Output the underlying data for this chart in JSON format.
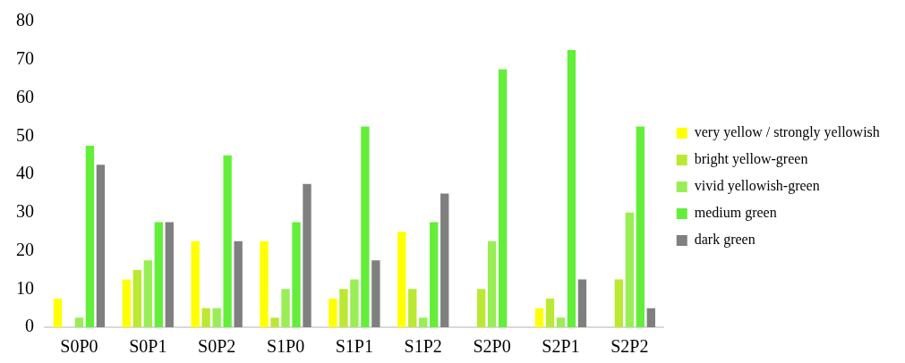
{
  "chart_data": {
    "type": "bar",
    "categories": [
      "S0P0",
      "S0P1",
      "S0P2",
      "S1P0",
      "S1P1",
      "S1P2",
      "S2P0",
      "S2P1",
      "S2P2"
    ],
    "series": [
      {
        "name": "very yellow / strongly yellowish",
        "color": "#ffff00",
        "values": [
          7.5,
          12.5,
          22.5,
          22.5,
          7.5,
          25,
          0,
          5,
          0
        ]
      },
      {
        "name": "bright yellow-green",
        "color": "#bbe833",
        "values": [
          0,
          15,
          5,
          2.5,
          10,
          10,
          10,
          7.5,
          12.5
        ]
      },
      {
        "name": "vivid yellowish-green",
        "color": "#99ee55",
        "values": [
          2.5,
          17.5,
          5,
          10,
          12.5,
          2.5,
          22.5,
          2.5,
          30
        ]
      },
      {
        "name": "medium green",
        "color": "#63ee3a",
        "values": [
          47.5,
          27.5,
          45,
          27.5,
          52.5,
          27.5,
          67.5,
          72.5,
          52.5
        ]
      },
      {
        "name": "dark green",
        "color": "#7f7f7f",
        "values": [
          42.5,
          27.5,
          22.5,
          37.5,
          17.5,
          35,
          0,
          12.5,
          5
        ]
      }
    ],
    "ylim": [
      0,
      80
    ],
    "yticks": [
      0,
      10,
      20,
      30,
      40,
      50,
      60,
      70,
      80
    ],
    "grid": false,
    "legend": "right"
  }
}
